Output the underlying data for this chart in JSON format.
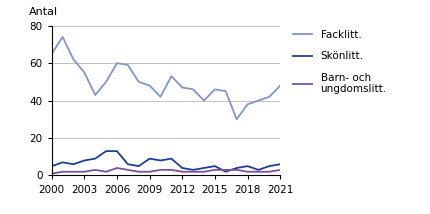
{
  "years": [
    2000,
    2001,
    2002,
    2003,
    2004,
    2005,
    2006,
    2007,
    2008,
    2009,
    2010,
    2011,
    2012,
    2013,
    2014,
    2015,
    2016,
    2017,
    2018,
    2019,
    2020,
    2021
  ],
  "facklitt": [
    65,
    74,
    62,
    55,
    43,
    50,
    60,
    59,
    50,
    48,
    42,
    53,
    47,
    46,
    40,
    46,
    45,
    30,
    38,
    40,
    42,
    48
  ],
  "skonlitt": [
    5,
    7,
    6,
    8,
    9,
    13,
    13,
    6,
    5,
    9,
    8,
    9,
    4,
    3,
    4,
    5,
    2,
    4,
    5,
    3,
    5,
    6
  ],
  "barn": [
    1,
    2,
    2,
    2,
    3,
    2,
    4,
    3,
    2,
    2,
    3,
    3,
    2,
    2,
    2,
    3,
    3,
    3,
    2,
    2,
    2,
    3
  ],
  "facklitt_color": "#8096C8",
  "skonlitt_color": "#1F3F96",
  "barn_color": "#7B4F9E",
  "ylabel": "Antal",
  "ylim": [
    0,
    80
  ],
  "yticks": [
    0,
    20,
    40,
    60,
    80
  ],
  "xticks": [
    2000,
    2003,
    2006,
    2009,
    2012,
    2015,
    2018,
    2021
  ],
  "xlim": [
    2000,
    2021
  ],
  "legend_facklitt": "Facklitt.",
  "legend_skonlitt": "Skönlitt.",
  "legend_barn": "Barn- och\nungdomslitt."
}
